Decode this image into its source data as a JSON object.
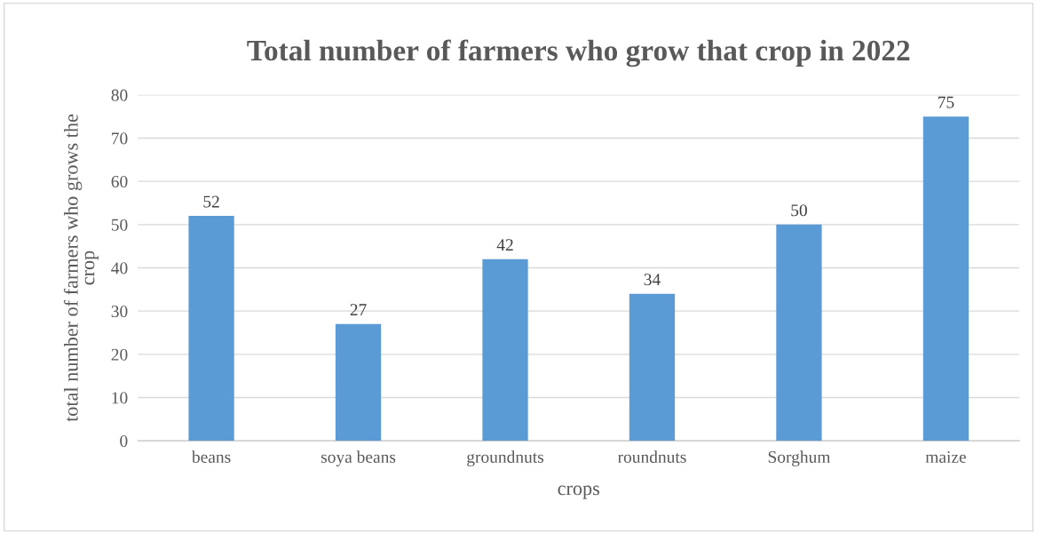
{
  "chart_data": {
    "type": "bar",
    "title": "Total number of farmers who grow that crop in 2022",
    "xlabel": "crops",
    "ylabel": "total number of farmers who grows the crop",
    "categories": [
      "beans",
      "soya beans",
      "groundnuts",
      "roundnuts",
      "Sorghum",
      "maize"
    ],
    "values": [
      52,
      27,
      42,
      34,
      50,
      75
    ],
    "color": "#5b9bd5",
    "ylim": [
      0,
      80
    ],
    "yticks": [
      0,
      10,
      20,
      30,
      40,
      50,
      60,
      70,
      80
    ],
    "grid": "y",
    "data_labels": true,
    "legend": false
  }
}
